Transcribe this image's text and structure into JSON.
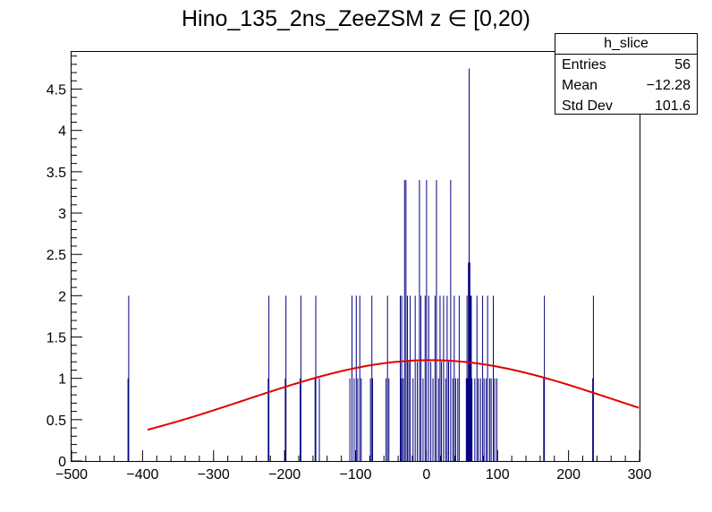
{
  "chart_data": {
    "type": "bar",
    "title": "Hino_135_2ns_ZeeZSM z  ∈ [0,20)",
    "xlabel": "",
    "ylabel": "",
    "xlim": [
      -500,
      300
    ],
    "ylim": [
      0,
      4.95
    ],
    "x_ticks": [
      -500,
      -400,
      -300,
      -200,
      -100,
      0,
      100,
      200,
      300
    ],
    "x_tick_labels": [
      "−500",
      "−400",
      "−300",
      "−200",
      "−100",
      "0",
      "100",
      "200",
      "300"
    ],
    "y_ticks": [
      0,
      0.5,
      1,
      1.5,
      2,
      2.5,
      3,
      3.5,
      4,
      4.5
    ],
    "y_tick_labels": [
      "0",
      "0.5",
      "1",
      "1.5",
      "2",
      "2.5",
      "3",
      "3.5",
      "4",
      "4.5"
    ],
    "histogram": {
      "color": "#000080",
      "bins": [
        {
          "x": -420.5,
          "y": 1
        },
        {
          "x": -419.5,
          "y": 2
        },
        {
          "x": -223,
          "y": 1
        },
        {
          "x": -222,
          "y": 2
        },
        {
          "x": -199,
          "y": 1
        },
        {
          "x": -198,
          "y": 2
        },
        {
          "x": -178,
          "y": 1
        },
        {
          "x": -177,
          "y": 2
        },
        {
          "x": -157,
          "y": 1
        },
        {
          "x": -156,
          "y": 2
        },
        {
          "x": -151,
          "y": 1
        },
        {
          "x": -108,
          "y": 1
        },
        {
          "x": -105,
          "y": 2
        },
        {
          "x": -102,
          "y": 1
        },
        {
          "x": -99,
          "y": 2
        },
        {
          "x": -97,
          "y": 1
        },
        {
          "x": -94,
          "y": 2
        },
        {
          "x": -92,
          "y": 1
        },
        {
          "x": -79,
          "y": 1
        },
        {
          "x": -77,
          "y": 2
        },
        {
          "x": -76,
          "y": 1
        },
        {
          "x": -57,
          "y": 1
        },
        {
          "x": -55,
          "y": 2
        },
        {
          "x": -53,
          "y": 1
        },
        {
          "x": -37,
          "y": 2
        },
        {
          "x": -36,
          "y": 1
        },
        {
          "x": -35,
          "y": 2
        },
        {
          "x": -33,
          "y": 1
        },
        {
          "x": -31,
          "y": 3.4
        },
        {
          "x": -29,
          "y": 3.4
        },
        {
          "x": -27,
          "y": 2
        },
        {
          "x": -25,
          "y": 1.2
        },
        {
          "x": -23,
          "y": 2
        },
        {
          "x": -19,
          "y": 1
        },
        {
          "x": -16,
          "y": 2
        },
        {
          "x": -13,
          "y": 1.2
        },
        {
          "x": -10,
          "y": 3.4
        },
        {
          "x": -8,
          "y": 2
        },
        {
          "x": -5,
          "y": 1
        },
        {
          "x": -2,
          "y": 2
        },
        {
          "x": 0,
          "y": 3.4
        },
        {
          "x": 3,
          "y": 2
        },
        {
          "x": 6,
          "y": 1.2
        },
        {
          "x": 9,
          "y": 1
        },
        {
          "x": 12,
          "y": 2
        },
        {
          "x": 14,
          "y": 3.4
        },
        {
          "x": 17,
          "y": 1
        },
        {
          "x": 19,
          "y": 2
        },
        {
          "x": 21,
          "y": 1.2
        },
        {
          "x": 24,
          "y": 2
        },
        {
          "x": 27,
          "y": 1
        },
        {
          "x": 29,
          "y": 2
        },
        {
          "x": 31,
          "y": 1.2
        },
        {
          "x": 34,
          "y": 3.4
        },
        {
          "x": 37,
          "y": 1
        },
        {
          "x": 39,
          "y": 2
        },
        {
          "x": 41,
          "y": 1
        },
        {
          "x": 44,
          "y": 1
        },
        {
          "x": 46,
          "y": 2
        },
        {
          "x": 56,
          "y": 1
        },
        {
          "x": 57,
          "y": 2
        },
        {
          "x": 58,
          "y": 1
        },
        {
          "x": 59,
          "y": 2.4
        },
        {
          "x": 60,
          "y": 4.75
        },
        {
          "x": 61,
          "y": 2.4
        },
        {
          "x": 62,
          "y": 2
        },
        {
          "x": 63,
          "y": 2
        },
        {
          "x": 64,
          "y": 1
        },
        {
          "x": 68,
          "y": 1
        },
        {
          "x": 71,
          "y": 2
        },
        {
          "x": 73,
          "y": 1
        },
        {
          "x": 76,
          "y": 1
        },
        {
          "x": 79,
          "y": 2
        },
        {
          "x": 81,
          "y": 1
        },
        {
          "x": 84,
          "y": 1
        },
        {
          "x": 86,
          "y": 2
        },
        {
          "x": 89,
          "y": 1
        },
        {
          "x": 91,
          "y": 1
        },
        {
          "x": 94,
          "y": 2
        },
        {
          "x": 96,
          "y": 1
        },
        {
          "x": 99,
          "y": 1
        },
        {
          "x": 165,
          "y": 1
        },
        {
          "x": 166,
          "y": 2
        },
        {
          "x": 234,
          "y": 1
        },
        {
          "x": 235,
          "y": 2
        }
      ]
    },
    "fit": {
      "type": "gaussian",
      "color": "#e00000",
      "amplitude": 1.22,
      "mean": 5,
      "sigma": 260,
      "x_range": [
        -393,
        300
      ]
    },
    "stats_box": {
      "name": "h_slice",
      "rows": [
        {
          "label": "Entries",
          "value": "56"
        },
        {
          "label": "Mean",
          "value": "−12.28"
        },
        {
          "label": "Std Dev",
          "value": "101.6"
        }
      ]
    }
  }
}
